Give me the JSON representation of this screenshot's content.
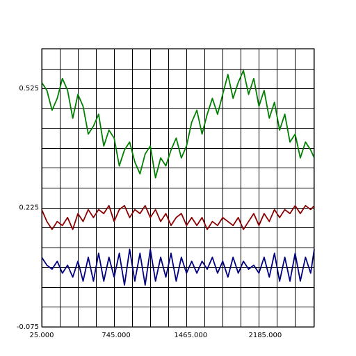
{
  "chart_data": {
    "type": "line",
    "title": "",
    "xlabel": "",
    "ylabel": "",
    "xlim": [
      25,
      2660
    ],
    "ylim": [
      -0.075,
      0.625
    ],
    "x_ticks": [
      {
        "value": 25,
        "label": "25.000"
      },
      {
        "value": 745,
        "label": "745.000"
      },
      {
        "value": 1465,
        "label": "1465.000"
      },
      {
        "value": 2185,
        "label": "2185.000"
      }
    ],
    "y_ticks": [
      {
        "value": 0.525,
        "label": "0.525"
      },
      {
        "value": 0.225,
        "label": "0.225"
      },
      {
        "value": -0.075,
        "label": "-0.075"
      }
    ],
    "x_gridlines": [
      25,
      200,
      375,
      550,
      725,
      900,
      1075,
      1250,
      1425,
      1600,
      1775,
      1950,
      2125,
      2300,
      2475,
      2650
    ],
    "y_gridlines": [
      -0.075,
      -0.025,
      0.025,
      0.075,
      0.125,
      0.175,
      0.225,
      0.275,
      0.325,
      0.375,
      0.425,
      0.475,
      0.525,
      0.575,
      0.625
    ],
    "grid": true,
    "series": [
      {
        "color": "#008000",
        "x": [
          25,
          75,
          125,
          175,
          225,
          275,
          325,
          375,
          425,
          475,
          525,
          575,
          625,
          675,
          725,
          775,
          825,
          875,
          925,
          975,
          1025,
          1075,
          1125,
          1175,
          1225,
          1275,
          1325,
          1375,
          1425,
          1475,
          1525,
          1575,
          1625,
          1675,
          1725,
          1775,
          1825,
          1875,
          1925,
          1975,
          2025,
          2075,
          2125,
          2175,
          2225,
          2275,
          2325,
          2375,
          2425,
          2475,
          2525,
          2575,
          2625,
          2660
        ],
        "values": [
          0.54,
          0.52,
          0.47,
          0.5,
          0.55,
          0.52,
          0.45,
          0.51,
          0.48,
          0.41,
          0.43,
          0.46,
          0.38,
          0.42,
          0.4,
          0.33,
          0.37,
          0.39,
          0.34,
          0.31,
          0.36,
          0.38,
          0.3,
          0.35,
          0.33,
          0.37,
          0.4,
          0.35,
          0.38,
          0.44,
          0.47,
          0.41,
          0.46,
          0.5,
          0.46,
          0.51,
          0.56,
          0.5,
          0.54,
          0.57,
          0.51,
          0.55,
          0.48,
          0.52,
          0.45,
          0.49,
          0.42,
          0.46,
          0.39,
          0.41,
          0.35,
          0.39,
          0.37,
          0.35
        ]
      },
      {
        "color": "#8b0000",
        "x": [
          25,
          75,
          125,
          175,
          225,
          275,
          325,
          375,
          425,
          475,
          525,
          575,
          625,
          675,
          725,
          775,
          825,
          875,
          925,
          975,
          1025,
          1075,
          1125,
          1175,
          1225,
          1275,
          1325,
          1375,
          1425,
          1475,
          1525,
          1575,
          1625,
          1675,
          1725,
          1775,
          1825,
          1875,
          1925,
          1975,
          2025,
          2075,
          2125,
          2175,
          2225,
          2275,
          2325,
          2375,
          2425,
          2475,
          2525,
          2575,
          2625,
          2660
        ],
        "values": [
          0.22,
          0.19,
          0.17,
          0.19,
          0.18,
          0.2,
          0.17,
          0.21,
          0.19,
          0.22,
          0.2,
          0.22,
          0.21,
          0.23,
          0.19,
          0.22,
          0.23,
          0.2,
          0.22,
          0.21,
          0.23,
          0.2,
          0.22,
          0.19,
          0.21,
          0.18,
          0.2,
          0.21,
          0.18,
          0.2,
          0.18,
          0.2,
          0.17,
          0.19,
          0.18,
          0.2,
          0.19,
          0.18,
          0.2,
          0.17,
          0.19,
          0.21,
          0.18,
          0.21,
          0.19,
          0.22,
          0.2,
          0.22,
          0.21,
          0.23,
          0.21,
          0.23,
          0.22,
          0.23
        ]
      },
      {
        "color": "#000080",
        "x": [
          25,
          75,
          125,
          175,
          225,
          275,
          325,
          375,
          425,
          475,
          525,
          575,
          625,
          675,
          725,
          775,
          825,
          875,
          925,
          975,
          1025,
          1075,
          1125,
          1175,
          1225,
          1275,
          1325,
          1375,
          1425,
          1475,
          1525,
          1575,
          1625,
          1675,
          1725,
          1775,
          1825,
          1875,
          1925,
          1975,
          2025,
          2075,
          2125,
          2175,
          2225,
          2275,
          2325,
          2375,
          2425,
          2475,
          2525,
          2575,
          2625,
          2660
        ],
        "values": [
          0.1,
          0.08,
          0.07,
          0.09,
          0.06,
          0.08,
          0.05,
          0.09,
          0.04,
          0.1,
          0.04,
          0.11,
          0.04,
          0.1,
          0.05,
          0.11,
          0.03,
          0.12,
          0.04,
          0.11,
          0.03,
          0.12,
          0.04,
          0.1,
          0.05,
          0.11,
          0.04,
          0.1,
          0.06,
          0.09,
          0.06,
          0.09,
          0.07,
          0.1,
          0.06,
          0.09,
          0.05,
          0.1,
          0.06,
          0.09,
          0.07,
          0.08,
          0.06,
          0.1,
          0.05,
          0.11,
          0.04,
          0.1,
          0.04,
          0.11,
          0.04,
          0.1,
          0.06,
          0.12
        ]
      }
    ]
  }
}
